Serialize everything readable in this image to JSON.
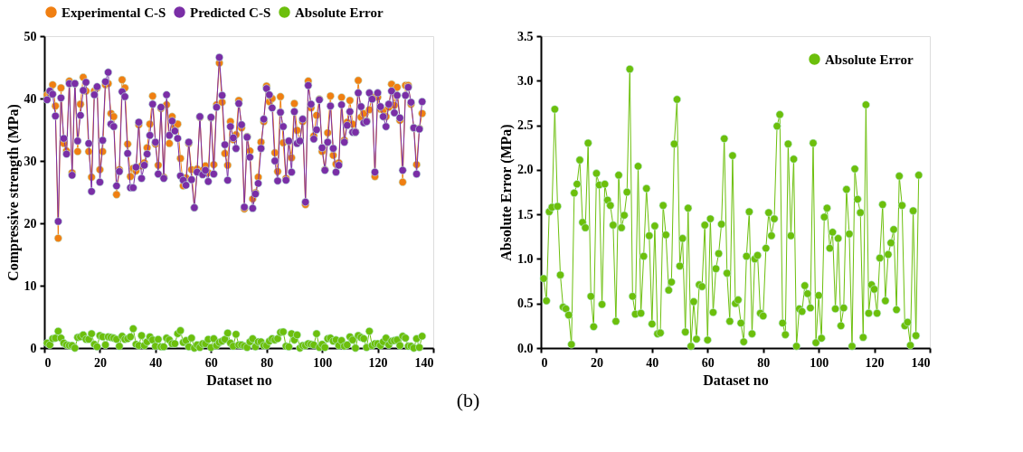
{
  "chart_data": [
    {
      "type": "line",
      "xlabel": "Dataset no",
      "ylabel": "Compressive strength (MPa)",
      "annotations": [
        "(b)"
      ],
      "xlim": [
        0,
        140
      ],
      "xticks": [
        0,
        20,
        40,
        60,
        80,
        100,
        120,
        140
      ],
      "ylim": [
        0,
        50
      ],
      "yticks": [
        0,
        10,
        20,
        30,
        40,
        50
      ],
      "grid": false,
      "legend": "top",
      "marker": "circle",
      "line_style": "solid",
      "x": [
        1,
        2,
        3,
        4,
        5,
        6,
        7,
        8,
        9,
        10,
        11,
        12,
        13,
        14,
        15,
        16,
        17,
        18,
        19,
        20,
        21,
        22,
        23,
        24,
        25,
        26,
        27,
        28,
        29,
        30,
        31,
        32,
        33,
        34,
        35,
        36,
        37,
        38,
        39,
        40,
        41,
        42,
        43,
        44,
        45,
        46,
        47,
        48,
        49,
        50,
        51,
        52,
        53,
        54,
        55,
        56,
        57,
        58,
        59,
        60,
        61,
        62,
        63,
        64,
        65,
        66,
        67,
        68,
        69,
        70,
        71,
        72,
        73,
        74,
        75,
        76,
        77,
        78,
        79,
        80,
        81,
        82,
        83,
        84,
        85,
        86,
        87,
        88,
        89,
        90,
        91,
        92,
        93,
        94,
        95,
        96,
        97,
        98,
        99,
        100,
        101,
        102,
        103,
        104,
        105,
        106,
        107,
        108,
        109,
        110,
        111,
        112,
        113,
        114,
        115,
        116,
        117,
        118,
        119,
        120,
        121,
        122,
        123,
        124,
        125,
        126,
        127,
        128,
        129,
        130,
        131,
        132,
        133,
        134,
        135,
        136
      ],
      "series": [
        {
          "name": "Experimental C-S",
          "color": "#f07f12",
          "values": [
            40.6,
            40.7,
            42.2,
            38.8,
            17.6,
            41.7,
            32.8,
            31.6,
            42.8,
            28.1,
            42.4,
            31.5,
            39.1,
            43.4,
            41.2,
            31.5,
            27.4,
            41.2,
            41.7,
            28.6,
            31.5,
            42.2,
            42.4,
            37.6,
            37.1,
            24.6,
            28.6,
            43.0,
            41.7,
            32.7,
            27.5,
            28.8,
            28.4,
            35.8,
            29.2,
            29.7,
            32.1,
            35.9,
            40.4,
            32.7,
            29.3,
            38.4,
            27.4,
            39.0,
            32.8,
            37.1,
            35.5,
            35.9,
            30.4,
            26.0,
            27.3,
            32.8,
            28.6,
            22.5,
            28.7,
            37.0,
            28.5,
            29.2,
            28.1,
            36.9,
            29.4,
            39.0,
            45.7,
            39.4,
            31.2,
            29.3,
            36.3,
            33.4,
            34.2,
            39.7,
            35.3,
            22.3,
            33.9,
            31.6,
            23.9,
            24.9,
            27.4,
            33.0,
            36.3,
            42.0,
            39.5,
            40.0,
            31.3,
            28.3,
            40.3,
            32.9,
            27.2,
            33.1,
            30.5,
            39.2,
            34.9,
            33.2,
            36.3,
            23.0,
            42.8,
            38.5,
            34.0,
            37.3,
            39.9,
            31.5,
            28.6,
            34.5,
            40.4,
            30.9,
            29.5,
            29.7,
            40.2,
            33.3,
            36.2,
            39.7,
            35.9,
            34.6,
            42.9,
            37.0,
            37.6,
            36.4,
            38.2,
            40.3,
            27.5,
            40.2,
            38.3,
            38.1,
            37.1,
            38.6,
            42.3,
            38.9,
            41.8,
            36.5,
            26.6,
            42.1,
            42.1,
            39.1,
            35.3,
            29.4,
            35.2,
            37.6
          ]
        },
        {
          "name": "Predicted C-S",
          "color": "#7a2ea6",
          "values": [
            39.8,
            41.2,
            40.7,
            37.2,
            20.3,
            40.1,
            33.6,
            31.1,
            42.4,
            27.7,
            42.4,
            33.2,
            37.3,
            41.3,
            42.6,
            32.8,
            25.1,
            40.6,
            41.9,
            26.6,
            33.3,
            42.7,
            44.2,
            35.9,
            35.5,
            26.0,
            28.3,
            41.1,
            40.3,
            31.2,
            25.7,
            25.7,
            29.0,
            36.2,
            27.2,
            29.3,
            31.1,
            34.1,
            39.1,
            33.0,
            27.9,
            38.6,
            27.2,
            40.6,
            34.1,
            36.4,
            34.8,
            33.6,
            27.6,
            26.9,
            26.1,
            33.0,
            27.0,
            22.5,
            28.2,
            37.1,
            27.8,
            28.5,
            26.7,
            37.0,
            27.9,
            38.6,
            46.6,
            40.5,
            32.6,
            26.9,
            35.5,
            33.7,
            32.0,
            39.2,
            35.8,
            22.6,
            33.8,
            30.6,
            22.4,
            24.7,
            26.4,
            32.0,
            36.7,
            41.6,
            40.6,
            38.5,
            30.0,
            26.8,
            37.8,
            35.5,
            26.9,
            33.2,
            28.2,
            37.9,
            32.8,
            33.2,
            36.7,
            23.4,
            42.1,
            39.1,
            33.5,
            35.0,
            39.8,
            32.1,
            28.5,
            33.0,
            38.8,
            32.0,
            28.2,
            29.3,
            39.0,
            33.0,
            35.7,
            37.9,
            34.6,
            34.6,
            40.9,
            38.7,
            36.1,
            36.3,
            40.9,
            39.9,
            28.2,
            40.9,
            38.7,
            37.1,
            35.5,
            39.1,
            41.2,
            37.7,
            40.5,
            36.9,
            28.5,
            40.5,
            41.8,
            39.4,
            35.3,
            27.9,
            35.1,
            39.5
          ]
        },
        {
          "name": "Absolute Error",
          "color": "#6cbf0c",
          "values": [
            0.8,
            0.5,
            1.5,
            1.6,
            2.7,
            1.6,
            0.8,
            0.5,
            0.4,
            0.4,
            0.0,
            1.7,
            1.8,
            2.1,
            1.4,
            1.4,
            2.3,
            0.6,
            0.2,
            2.0,
            1.8,
            0.5,
            1.8,
            1.7,
            1.6,
            1.4,
            0.3,
            1.9,
            1.4,
            1.5,
            1.8,
            3.1,
            0.6,
            0.4,
            2.0,
            0.4,
            1.0,
            1.8,
            1.3,
            0.3,
            1.4,
            0.2,
            0.2,
            1.6,
            1.3,
            0.7,
            0.7,
            2.3,
            2.8,
            0.9,
            1.2,
            0.2,
            1.6,
            0.0,
            0.5,
            0.1,
            0.7,
            0.7,
            1.4,
            0.1,
            1.5,
            0.4,
            0.9,
            1.1,
            1.4,
            2.4,
            0.8,
            0.3,
            2.2,
            0.5,
            0.5,
            0.3,
            0.1,
            1.0,
            1.5,
            0.2,
            1.0,
            1.0,
            0.4,
            0.4,
            1.1,
            1.5,
            1.3,
            1.5,
            2.5,
            2.6,
            0.3,
            0.2,
            2.3,
            1.3,
            2.1,
            0.0,
            0.4,
            0.4,
            0.7,
            0.6,
            0.5,
            2.3,
            0.1,
            0.6,
            0.1,
            1.5,
            1.6,
            1.1,
            1.3,
            0.4,
            1.2,
            0.3,
            0.5,
            1.8,
            1.3,
            0.0,
            2.0,
            1.7,
            1.5,
            0.1,
            2.7,
            0.4,
            0.7,
            0.7,
            0.4,
            1.0,
            1.6,
            0.5,
            1.1,
            1.2,
            1.3,
            0.4,
            1.9,
            1.6,
            0.3,
            0.3,
            0.0,
            1.5,
            0.1,
            1.9
          ]
        }
      ]
    },
    {
      "type": "line",
      "xlabel": "Dataset no",
      "ylabel": "Absolute Error (MPa)",
      "xlim": [
        0,
        140
      ],
      "xticks": [
        0,
        20,
        40,
        60,
        80,
        100,
        120,
        140
      ],
      "ylim": [
        0,
        3.5
      ],
      "yticks": [
        {
          "value": 0,
          "label": "0.0"
        },
        0.5,
        {
          "value": 1,
          "label": "1.0"
        },
        1.5,
        {
          "value": 2,
          "label": "2.0"
        },
        2.5,
        {
          "value": 3,
          "label": "3.0"
        },
        3.5
      ],
      "grid": false,
      "legend": "top right",
      "marker": "circle",
      "line_style": "solid",
      "x": [
        1,
        2,
        3,
        4,
        5,
        6,
        7,
        8,
        9,
        10,
        11,
        12,
        13,
        14,
        15,
        16,
        17,
        18,
        19,
        20,
        21,
        22,
        23,
        24,
        25,
        26,
        27,
        28,
        29,
        30,
        31,
        32,
        33,
        34,
        35,
        36,
        37,
        38,
        39,
        40,
        41,
        42,
        43,
        44,
        45,
        46,
        47,
        48,
        49,
        50,
        51,
        52,
        53,
        54,
        55,
        56,
        57,
        58,
        59,
        60,
        61,
        62,
        63,
        64,
        65,
        66,
        67,
        68,
        69,
        70,
        71,
        72,
        73,
        74,
        75,
        76,
        77,
        78,
        79,
        80,
        81,
        82,
        83,
        84,
        85,
        86,
        87,
        88,
        89,
        90,
        91,
        92,
        93,
        94,
        95,
        96,
        97,
        98,
        99,
        100,
        101,
        102,
        103,
        104,
        105,
        106,
        107,
        108,
        109,
        110,
        111,
        112,
        113,
        114,
        115,
        116,
        117,
        118,
        119,
        120,
        121,
        122,
        123,
        124,
        125,
        126,
        127,
        128,
        129,
        130,
        131,
        132,
        133,
        134,
        135,
        136
      ],
      "series": [
        {
          "name": "Absolute Error",
          "color": "#6cbf0c",
          "values": [
            0.78,
            0.53,
            1.53,
            1.58,
            2.68,
            1.59,
            0.82,
            0.46,
            0.44,
            0.37,
            0.04,
            1.74,
            1.84,
            2.11,
            1.41,
            1.35,
            2.3,
            0.58,
            0.24,
            1.96,
            1.83,
            0.49,
            1.84,
            1.66,
            1.6,
            1.38,
            0.3,
            1.94,
            1.35,
            1.49,
            1.75,
            3.13,
            0.58,
            0.38,
            2.04,
            0.39,
            1.03,
            1.79,
            1.26,
            0.27,
            1.37,
            0.16,
            0.17,
            1.6,
            1.27,
            0.65,
            0.74,
            2.29,
            2.79,
            0.92,
            1.23,
            0.18,
            1.57,
            0.02,
            0.52,
            0.1,
            0.71,
            0.69,
            1.38,
            0.09,
            1.45,
            0.4,
            0.89,
            1.06,
            1.39,
            2.35,
            0.84,
            0.3,
            2.16,
            0.5,
            0.54,
            0.28,
            0.07,
            1.03,
            1.53,
            0.16,
            1.0,
            1.04,
            0.39,
            0.36,
            1.12,
            1.52,
            1.26,
            1.45,
            2.49,
            2.62,
            0.28,
            0.15,
            2.29,
            1.26,
            2.12,
            0.02,
            0.44,
            0.41,
            0.7,
            0.61,
            0.45,
            2.3,
            0.06,
            0.59,
            0.11,
            1.47,
            1.57,
            1.12,
            1.3,
            0.44,
            1.23,
            0.25,
            0.45,
            1.78,
            1.28,
            0.02,
            2.01,
            1.67,
            1.52,
            0.12,
            2.73,
            0.39,
            0.71,
            0.66,
            0.39,
            1.01,
            1.61,
            0.53,
            1.05,
            1.18,
            1.33,
            0.43,
            1.93,
            1.6,
            0.25,
            0.29,
            0.03,
            1.54,
            0.14,
            1.94
          ]
        }
      ]
    }
  ]
}
